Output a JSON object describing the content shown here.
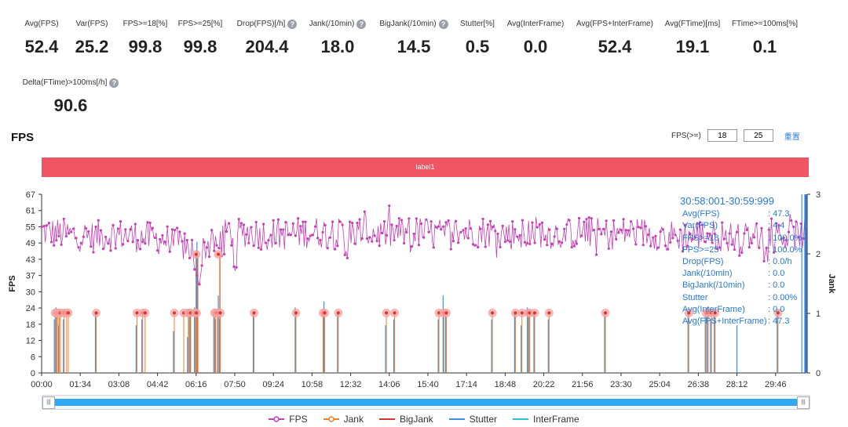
{
  "metrics": [
    {
      "label": "Avg(FPS)",
      "value": "52.4",
      "help": false
    },
    {
      "label": "Var(FPS)",
      "value": "25.2",
      "help": false
    },
    {
      "label": "FPS>=18[%]",
      "value": "99.8",
      "help": false
    },
    {
      "label": "FPS>=25[%]",
      "value": "99.8",
      "help": false
    },
    {
      "label": "Drop(FPS)[/h]",
      "value": "204.4",
      "help": true
    },
    {
      "label": "Jank(/10min)",
      "value": "18.0",
      "help": true
    },
    {
      "label": "BigJank(/10min)",
      "value": "14.5",
      "help": true
    },
    {
      "label": "Stutter[%]",
      "value": "0.5",
      "help": false
    },
    {
      "label": "Avg(InterFrame)",
      "value": "0.0",
      "help": false
    },
    {
      "label": "Avg(FPS+InterFrame)",
      "value": "52.4",
      "help": false
    },
    {
      "label": "Avg(FTime)[ms]",
      "value": "19.1",
      "help": false
    },
    {
      "label": "FTime>=100ms[%]",
      "value": "0.1",
      "help": false
    },
    {
      "label": "Delta(FTime)>100ms[/h]",
      "value": "90.6",
      "help": true
    }
  ],
  "section_title": "FPS",
  "threshold": {
    "label": "FPS(>=)",
    "value1": "18",
    "value2": "25",
    "reset_label": "重置"
  },
  "label_bar": "label1",
  "tooltip": {
    "title": "30:58:001-30:59:999",
    "rows": [
      {
        "k": "Avg(FPS)",
        "v": ": 47.3"
      },
      {
        "k": "Var(FPS)",
        "v": ": 4.4"
      },
      {
        "k": "FPS>=18",
        "v": ": 100.0%"
      },
      {
        "k": "FPS>=25",
        "v": ": 100.0%"
      },
      {
        "k": "Drop(FPS)",
        "v": ": 0.0/h"
      },
      {
        "k": "Jank(/10min)",
        "v": ": 0.0"
      },
      {
        "k": "BigJank(/10min)",
        "v": ": 0.0"
      },
      {
        "k": "Stutter",
        "v": ": 0.00%"
      },
      {
        "k": "Avg(InterFrame)",
        "v": ": 0.0"
      },
      {
        "k": "Avg(FPS+InterFrame)",
        "v": ": 47.3"
      }
    ]
  },
  "slider": {
    "handle_left": "|||",
    "handle_right": "|||"
  },
  "legend": [
    {
      "name": "FPS",
      "color": "#c540b5",
      "marker": "circle"
    },
    {
      "name": "Jank",
      "color": "#f07f2c",
      "marker": "circle"
    },
    {
      "name": "BigJank",
      "color": "#d4372c",
      "marker": "none"
    },
    {
      "name": "Stutter",
      "color": "#3d8ee6",
      "marker": "none"
    },
    {
      "name": "InterFrame",
      "color": "#2ec3cc",
      "marker": "none"
    }
  ],
  "chart_data": {
    "type": "line",
    "ylabel": "FPS",
    "y2label": "Jank",
    "ylim": [
      0,
      67
    ],
    "y2lim": [
      0,
      3
    ],
    "yticks": [
      "0",
      "6",
      "12",
      "18",
      "24",
      "30",
      "37",
      "43",
      "49",
      "55",
      "61",
      "67"
    ],
    "y2ticks": [
      "0",
      "1",
      "2",
      "3"
    ],
    "xlim": [
      0,
      1861
    ],
    "xticks": [
      "00:00",
      "01:34",
      "03:08",
      "04:42",
      "06:16",
      "07:50",
      "09:24",
      "10:58",
      "12:32",
      "14:06",
      "15:40",
      "17:14",
      "18:48",
      "20:22",
      "21:56",
      "23:30",
      "25:04",
      "26:38",
      "28:12",
      "29:46"
    ],
    "xtick_seconds": [
      0,
      94,
      188,
      282,
      376,
      470,
      564,
      658,
      752,
      846,
      940,
      1034,
      1128,
      1222,
      1316,
      1410,
      1504,
      1598,
      1692,
      1786
    ],
    "fps_profile": [
      [
        0,
        53
      ],
      [
        60,
        52
      ],
      [
        120,
        51
      ],
      [
        180,
        52
      ],
      [
        240,
        51
      ],
      [
        300,
        50
      ],
      [
        340,
        48
      ],
      [
        370,
        46
      ],
      [
        390,
        47
      ],
      [
        420,
        49
      ],
      [
        450,
        52
      ],
      [
        500,
        53
      ],
      [
        540,
        52
      ],
      [
        600,
        52
      ],
      [
        660,
        53
      ],
      [
        720,
        52
      ],
      [
        780,
        53
      ],
      [
        840,
        52
      ],
      [
        900,
        53
      ],
      [
        960,
        52
      ],
      [
        1020,
        53
      ],
      [
        1080,
        53
      ],
      [
        1140,
        52
      ],
      [
        1200,
        53
      ],
      [
        1260,
        52
      ],
      [
        1320,
        53
      ],
      [
        1380,
        52
      ],
      [
        1440,
        53
      ],
      [
        1500,
        52
      ],
      [
        1560,
        51
      ],
      [
        1620,
        52
      ],
      [
        1680,
        51
      ],
      [
        1740,
        51
      ],
      [
        1800,
        51
      ],
      [
        1861,
        52
      ]
    ],
    "fps_dips": [
      [
        376,
        36
      ],
      [
        385,
        33
      ],
      [
        430,
        44
      ],
      [
        472,
        38
      ],
      [
        740,
        43
      ],
      [
        900,
        45
      ],
      [
        1180,
        46
      ],
      [
        1520,
        45
      ],
      [
        1700,
        44
      ]
    ],
    "jank_events": [
      31,
      35,
      38,
      41,
      44,
      53,
      59,
      63,
      131,
      230,
      244,
      250,
      321,
      344,
      355,
      357,
      361,
      372,
      375,
      419,
      422,
      426,
      433,
      515,
      617,
      683,
      687,
      720,
      837,
      857,
      965,
      977,
      983,
      1095,
      1151,
      1167,
      1182,
      1186,
      1198,
      1233,
      1370,
      1573,
      1615,
      1620,
      1628,
      1637,
      1790
    ],
    "bigjank_events": [
      376,
      430
    ],
    "stutter_spikes": [
      [
        31,
        0.9
      ],
      [
        35,
        1.1
      ],
      [
        41,
        0.8
      ],
      [
        53,
        0.9
      ],
      [
        131,
        1.0
      ],
      [
        230,
        0.8
      ],
      [
        244,
        0.9
      ],
      [
        321,
        0.7
      ],
      [
        355,
        0.6
      ],
      [
        361,
        1.0
      ],
      [
        372,
        1.1
      ],
      [
        376,
        2.0
      ],
      [
        378,
        2.2
      ],
      [
        419,
        1.0
      ],
      [
        422,
        0.9
      ],
      [
        430,
        1.3
      ],
      [
        433,
        0.9
      ],
      [
        515,
        1.0
      ],
      [
        617,
        1.1
      ],
      [
        687,
        1.2
      ],
      [
        720,
        1.0
      ],
      [
        837,
        0.8
      ],
      [
        857,
        0.9
      ],
      [
        965,
        0.9
      ],
      [
        977,
        1.3
      ],
      [
        983,
        1.0
      ],
      [
        1095,
        0.9
      ],
      [
        1151,
        1.0
      ],
      [
        1167,
        0.8
      ],
      [
        1182,
        1.1
      ],
      [
        1186,
        1.0
      ],
      [
        1198,
        1.0
      ],
      [
        1233,
        0.9
      ],
      [
        1370,
        1.0
      ],
      [
        1573,
        1.0
      ],
      [
        1615,
        1.0
      ],
      [
        1620,
        1.1
      ],
      [
        1628,
        0.9
      ],
      [
        1637,
        1.0
      ],
      [
        1692,
        0.8
      ],
      [
        1790,
        1.0
      ],
      [
        1850,
        3.0
      ]
    ],
    "highlight_window": [
      1858,
      1860
    ],
    "grid": false,
    "legend_placement": "bottom"
  }
}
